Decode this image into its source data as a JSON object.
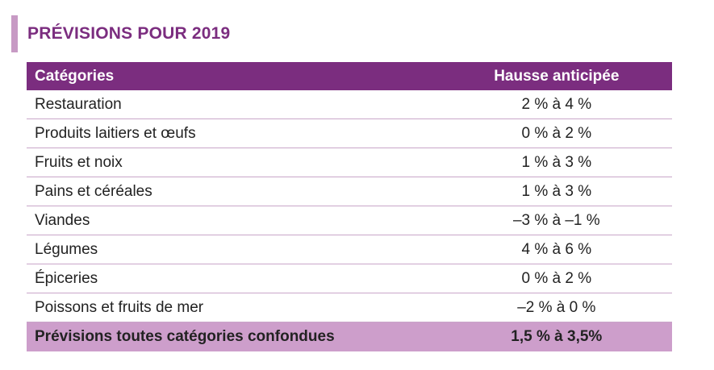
{
  "title": "PRÉVISIONS POUR 2019",
  "colors": {
    "accent": "#7b2d7f",
    "header_bg": "#7b2d7f",
    "total_bg": "#cd9ecb",
    "title_bar": "#c79ac4",
    "row_border": "#c9a6c9"
  },
  "table": {
    "headers": {
      "category": "Catégories",
      "increase": "Hausse anticipée"
    },
    "rows": [
      {
        "category": "Restauration",
        "increase": "2 % à 4 %"
      },
      {
        "category": "Produits laitiers et œufs",
        "increase": "0 % à 2 %"
      },
      {
        "category": "Fruits et noix",
        "increase": "1 % à 3 %"
      },
      {
        "category": "Pains et céréales",
        "increase": "1 % à 3 %"
      },
      {
        "category": "Viandes",
        "increase": "–3 % à –1 %"
      },
      {
        "category": "Légumes",
        "increase": "4 % à 6 %"
      },
      {
        "category": "Épiceries",
        "increase": "0 % à 2 %"
      },
      {
        "category": "Poissons et fruits de mer",
        "increase": "–2 % à 0 %"
      }
    ],
    "total": {
      "category": "Prévisions toutes catégories confondues",
      "increase": "1,5 % à 3,5%"
    }
  }
}
